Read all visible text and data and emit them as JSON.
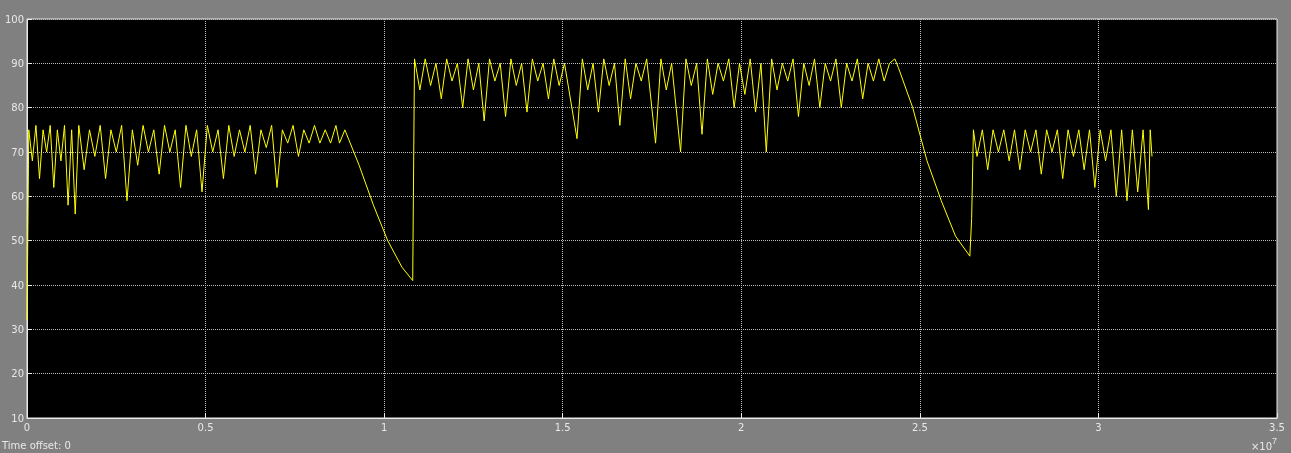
{
  "chart_data": {
    "type": "line",
    "annotations": [
      "Time offset: 0",
      "×10$^{7}$"
    ],
    "xlim": [
      0,
      3.5
    ],
    "xticks": [
      0,
      0.5,
      1,
      1.5,
      2,
      2.5,
      3,
      3.5
    ],
    "ylim": [
      10,
      100
    ],
    "yticks": [
      10,
      20,
      30,
      40,
      50,
      60,
      70,
      80,
      90,
      100
    ],
    "grid": true,
    "marker": "none",
    "line_style": "solid",
    "series": [
      {
        "color": "#ffff00",
        "x": [
          0,
          0.005,
          0.015,
          0.025,
          0.035,
          0.045,
          0.055,
          0.065,
          0.075,
          0.085,
          0.095,
          0.105,
          0.115,
          0.125,
          0.135,
          0.145,
          0.16,
          0.175,
          0.19,
          0.205,
          0.22,
          0.235,
          0.25,
          0.265,
          0.28,
          0.295,
          0.31,
          0.325,
          0.34,
          0.355,
          0.37,
          0.385,
          0.4,
          0.415,
          0.43,
          0.445,
          0.46,
          0.475,
          0.49,
          0.505,
          0.52,
          0.535,
          0.55,
          0.565,
          0.58,
          0.595,
          0.61,
          0.625,
          0.64,
          0.655,
          0.67,
          0.685,
          0.7,
          0.715,
          0.73,
          0.745,
          0.76,
          0.775,
          0.79,
          0.805,
          0.82,
          0.835,
          0.85,
          0.865,
          0.875,
          0.89,
          0.93,
          0.97,
          1.01,
          1.05,
          1.08,
          1.085,
          1.1,
          1.115,
          1.13,
          1.145,
          1.16,
          1.175,
          1.19,
          1.205,
          1.22,
          1.235,
          1.25,
          1.265,
          1.28,
          1.295,
          1.31,
          1.325,
          1.34,
          1.355,
          1.37,
          1.385,
          1.4,
          1.415,
          1.43,
          1.445,
          1.46,
          1.475,
          1.49,
          1.505,
          1.54,
          1.555,
          1.57,
          1.585,
          1.6,
          1.615,
          1.63,
          1.645,
          1.66,
          1.675,
          1.69,
          1.705,
          1.72,
          1.735,
          1.76,
          1.775,
          1.79,
          1.805,
          1.83,
          1.845,
          1.86,
          1.875,
          1.89,
          1.905,
          1.92,
          1.935,
          1.95,
          1.965,
          1.98,
          1.995,
          2.01,
          2.025,
          2.04,
          2.055,
          2.07,
          2.085,
          2.1,
          2.115,
          2.13,
          2.145,
          2.16,
          2.175,
          2.19,
          2.205,
          2.22,
          2.235,
          2.25,
          2.265,
          2.28,
          2.295,
          2.31,
          2.325,
          2.34,
          2.355,
          2.37,
          2.385,
          2.4,
          2.415,
          2.43,
          2.44,
          2.48,
          2.52,
          2.56,
          2.6,
          2.64,
          2.645,
          2.65,
          2.66,
          2.675,
          2.69,
          2.705,
          2.72,
          2.735,
          2.75,
          2.765,
          2.78,
          2.795,
          2.81,
          2.825,
          2.84,
          2.855,
          2.87,
          2.885,
          2.9,
          2.915,
          2.93,
          2.945,
          2.96,
          2.975,
          2.99,
          3.005,
          3.02,
          3.035,
          3.05,
          3.065,
          3.08,
          3.095,
          3.11,
          3.125,
          3.14,
          3.145,
          3.15
        ],
        "values": [
          32,
          75,
          68,
          76,
          64,
          75,
          70,
          76,
          62,
          75,
          68,
          76,
          58,
          75,
          56,
          76,
          66,
          75,
          69,
          76,
          64,
          75,
          70,
          76,
          59,
          75,
          67,
          76,
          70,
          75,
          65,
          76,
          70,
          75,
          62,
          76,
          69,
          75,
          61,
          76,
          70,
          75,
          64,
          76,
          69,
          75,
          70,
          76,
          65,
          75,
          71,
          76,
          62,
          75,
          72,
          76,
          69,
          75,
          72,
          76,
          72,
          75,
          72,
          76,
          72,
          75,
          67,
          58,
          50,
          44,
          41,
          91,
          84,
          91,
          85,
          90,
          82,
          91,
          86,
          90,
          80,
          91,
          84,
          90,
          77,
          91,
          86,
          90,
          78,
          91,
          85,
          90,
          79,
          91,
          86,
          90,
          82,
          91,
          85,
          90,
          73,
          91,
          84,
          90,
          79,
          91,
          85,
          90,
          76,
          91,
          82,
          90,
          86,
          91,
          72,
          91,
          84,
          90,
          70,
          91,
          85,
          90,
          74,
          91,
          83,
          90,
          86,
          91,
          80,
          90,
          83,
          91,
          79,
          90,
          70,
          91,
          84,
          90,
          86,
          91,
          78,
          90,
          85,
          91,
          80,
          90,
          86,
          91,
          80,
          90,
          86,
          91,
          82,
          90,
          86,
          91,
          86,
          90,
          91,
          89,
          80,
          68,
          59,
          51,
          46.5,
          55,
          75,
          69,
          75,
          66,
          75,
          70,
          75,
          68,
          75,
          66,
          75,
          70,
          75,
          65,
          75,
          70,
          75,
          64,
          75,
          69,
          75,
          66,
          75,
          62,
          75,
          68,
          75,
          60,
          75,
          59,
          75,
          61,
          75,
          57,
          75,
          69
        ]
      }
    ]
  }
}
